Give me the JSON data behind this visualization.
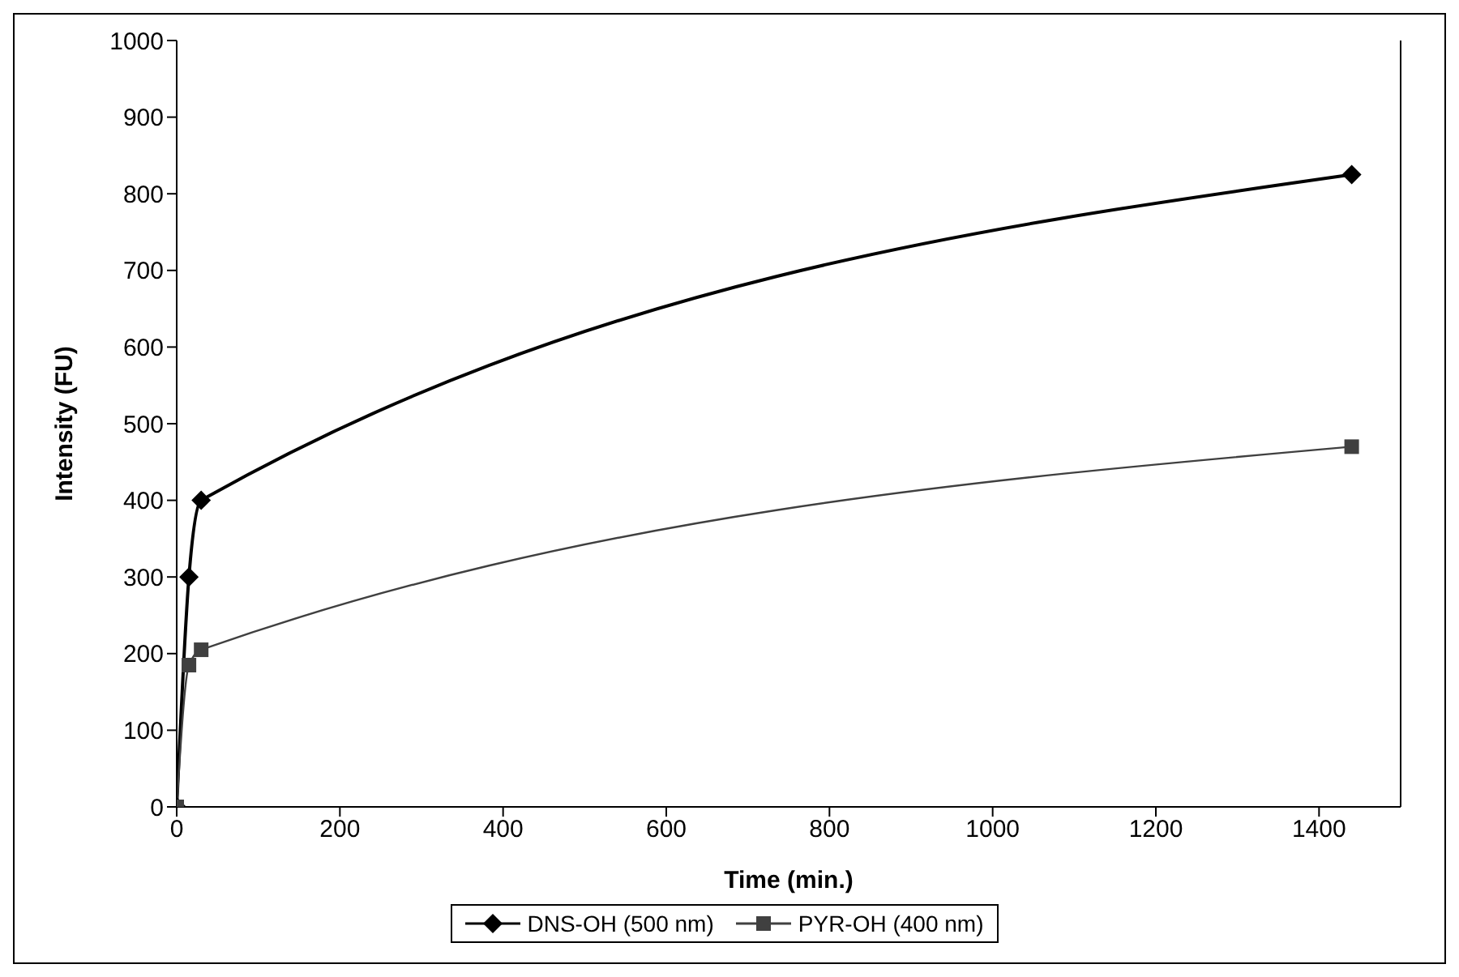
{
  "chart_data": {
    "type": "line",
    "xlabel": "Time (min.)",
    "ylabel": "Intensity (FU)",
    "x": [
      0,
      15,
      30,
      1440
    ],
    "series": [
      {
        "name": "DNS-OH (500 nm)",
        "color": "#000000",
        "values": [
          0,
          300,
          400,
          825
        ],
        "marker": "diamond"
      },
      {
        "name": "PYR-OH (400 nm)",
        "color": "#404040",
        "values": [
          0,
          185,
          205,
          470
        ],
        "marker": "square"
      }
    ],
    "xlim": [
      0,
      1500
    ],
    "xticks": [
      0,
      200,
      400,
      600,
      800,
      1000,
      1200,
      1400
    ],
    "ylim": [
      0,
      1000
    ],
    "yticks": [
      0,
      100,
      200,
      300,
      400,
      500,
      600,
      700,
      800,
      900,
      1000
    ],
    "grid": false,
    "legend": "bottom",
    "line_style": "solid"
  }
}
